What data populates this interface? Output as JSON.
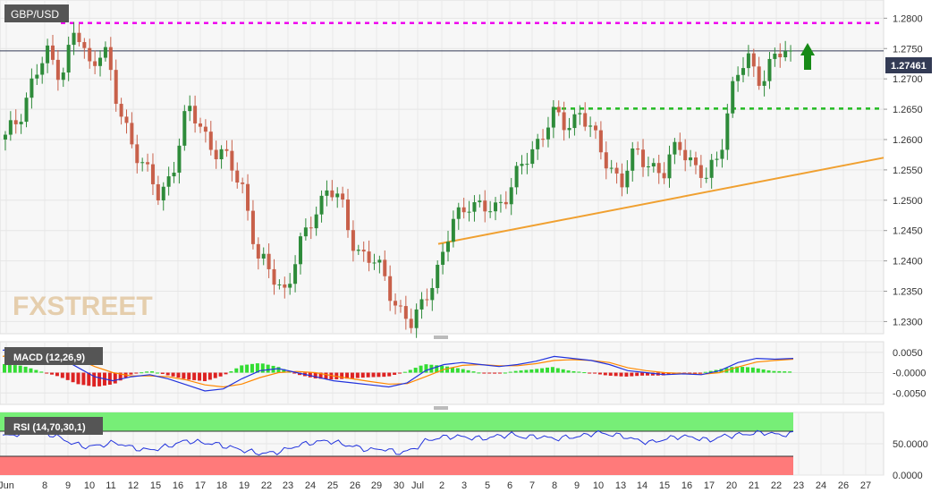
{
  "symbol": "GBP/USD",
  "watermark": "FXSTREET",
  "current_price_label": "1.27461",
  "colors": {
    "bull": "#2e8b3a",
    "bear": "#c8604a",
    "resistance": "#ee00ee",
    "support": "#22bb22",
    "trendline": "#f0a030",
    "price_line": "#333b55",
    "arrow": "#178a17",
    "macd_line": "#2233dd",
    "signal_line": "#ff8800",
    "hist_pos": "#33dd33",
    "hist_neg": "#dd2222",
    "rsi_line": "#2233dd",
    "rsi_overbought": "#77ee77",
    "rsi_oversold": "#ff7a7a"
  },
  "main_axis": {
    "min": 1.228,
    "max": 1.283,
    "ticks": [
      "1.2800",
      "1.2750",
      "1.2700",
      "1.2650",
      "1.2600",
      "1.2550",
      "1.2500",
      "1.2450",
      "1.2400",
      "1.2350",
      "1.2300"
    ]
  },
  "macd_axis": {
    "min": -0.0078,
    "max": 0.0076,
    "ticks": [
      "0.0050",
      "-0.0000",
      "-0.0050"
    ]
  },
  "rsi_axis": {
    "min": 0,
    "max": 100,
    "ticks": [
      "50.0000",
      "0.0000"
    ]
  },
  "x_labels": [
    "Jun",
    "8",
    "9",
    "10",
    "11",
    "12",
    "15",
    "16",
    "17",
    "18",
    "19",
    "22",
    "23",
    "24",
    "25",
    "26",
    "29",
    "30",
    "Jul",
    "2",
    "3",
    "5",
    "6",
    "7",
    "8",
    "9",
    "10",
    "13",
    "14",
    "15",
    "16",
    "17",
    "20",
    "21",
    "22",
    "23",
    "24",
    "26",
    "27"
  ],
  "chart_data": [
    {
      "type": "candlestick",
      "title": "GBP/USD",
      "last_price": 1.27461,
      "levels": {
        "resistance": 1.2792,
        "support": 1.2651
      },
      "trendline": {
        "from": [
          0,
          1.2428
        ],
        "to": [
          39,
          1.257
        ]
      },
      "closes": [
        1.26,
        1.264,
        1.27,
        1.274,
        1.271,
        1.278,
        1.272,
        1.276,
        1.265,
        1.26,
        1.255,
        1.25,
        1.256,
        1.265,
        1.262,
        1.258,
        1.256,
        1.252,
        1.24,
        1.238,
        1.235,
        1.242,
        1.248,
        1.252,
        1.249,
        1.242,
        1.24,
        1.238,
        1.232,
        1.229,
        1.235,
        1.239,
        1.247,
        1.25,
        1.248,
        1.249,
        1.252,
        1.256,
        1.26,
        1.264,
        1.262,
        1.265,
        1.26,
        1.256,
        1.253,
        1.258,
        1.256,
        1.254,
        1.26,
        1.256,
        1.253,
        1.259,
        1.27,
        1.273,
        1.27,
        1.274,
        1.274
      ],
      "highs": [
        1.263,
        1.267,
        1.275,
        1.281,
        1.278,
        1.281,
        1.276,
        1.278,
        1.27,
        1.265,
        1.26,
        1.258,
        1.265,
        1.268,
        1.266,
        1.262,
        1.26,
        1.257,
        1.248,
        1.243,
        1.24,
        1.247,
        1.254,
        1.255,
        1.253,
        1.248,
        1.245,
        1.242,
        1.237,
        1.232,
        1.239,
        1.242,
        1.251,
        1.253,
        1.252,
        1.252,
        1.255,
        1.26,
        1.264,
        1.267,
        1.266,
        1.267,
        1.266,
        1.26,
        1.258,
        1.263,
        1.26,
        1.258,
        1.264,
        1.262,
        1.257,
        1.264,
        1.276,
        1.275,
        1.274,
        1.275,
        1.276
      ],
      "lows": [
        1.258,
        1.26,
        1.264,
        1.268,
        1.268,
        1.27,
        1.268,
        1.262,
        1.26,
        1.254,
        1.249,
        1.248,
        1.252,
        1.258,
        1.256,
        1.254,
        1.251,
        1.238,
        1.235,
        1.234,
        1.233,
        1.236,
        1.245,
        1.247,
        1.242,
        1.238,
        1.237,
        1.232,
        1.229,
        1.228,
        1.231,
        1.235,
        1.244,
        1.247,
        1.246,
        1.246,
        1.249,
        1.252,
        1.258,
        1.26,
        1.259,
        1.26,
        1.258,
        1.252,
        1.248,
        1.253,
        1.252,
        1.251,
        1.253,
        1.254,
        1.251,
        1.253,
        1.265,
        1.265,
        1.265,
        1.27,
        1.27
      ]
    },
    {
      "type": "line",
      "title": "MACD (12,26,9)",
      "series": [
        {
          "values": [
            0.0055,
            0.006,
            0.0052,
            0.004,
            0.0015,
            -0.001,
            -0.002,
            -0.001,
            -0.0005,
            -0.0015,
            -0.003,
            -0.0045,
            -0.004,
            -0.0015,
            0.0005,
            0.001,
            0.0,
            -0.001,
            -0.002,
            -0.0025,
            -0.003,
            -0.0035,
            -0.0025,
            0.0005,
            0.002,
            0.0025,
            0.002,
            0.0015,
            0.002,
            0.0028,
            0.004,
            0.0035,
            0.003,
            0.002,
            0.0005,
            0.0,
            -0.0005,
            -0.0003,
            -0.0005,
            0.0005,
            0.0025,
            0.0035,
            0.0033,
            0.0035
          ]
        },
        {
          "values": [
            0.004,
            0.0048,
            0.005,
            0.0047,
            0.0035,
            0.0015,
            0.0,
            -0.0008,
            -0.0008,
            -0.001,
            -0.0018,
            -0.003,
            -0.0035,
            -0.0028,
            -0.0012,
            0.0,
            0.0003,
            0.0,
            -0.0008,
            -0.0015,
            -0.0022,
            -0.0028,
            -0.0027,
            -0.001,
            0.0008,
            0.0018,
            0.002,
            0.0017,
            0.0017,
            0.0022,
            0.003,
            0.0032,
            0.003,
            0.0025,
            0.0012,
            0.0005,
            0.0,
            -0.0002,
            -0.0004,
            0.0,
            0.0014,
            0.0026,
            0.003,
            0.0033
          ]
        }
      ]
    },
    {
      "type": "line",
      "title": "RSI (14,70,30,1)",
      "levels": {
        "overbought": 70,
        "oversold": 30
      },
      "series": [
        {
          "values": [
            62,
            65,
            70,
            68,
            60,
            50,
            45,
            48,
            52,
            45,
            40,
            42,
            48,
            55,
            52,
            50,
            45,
            40,
            35,
            35,
            40,
            48,
            52,
            55,
            50,
            45,
            40,
            42,
            35,
            40,
            55,
            60,
            62,
            60,
            58,
            62,
            65,
            60,
            62,
            58,
            60,
            62,
            68,
            65,
            62,
            55,
            52,
            58,
            62,
            60,
            55,
            62,
            64,
            66,
            68,
            64,
            66
          ]
        }
      ]
    }
  ]
}
